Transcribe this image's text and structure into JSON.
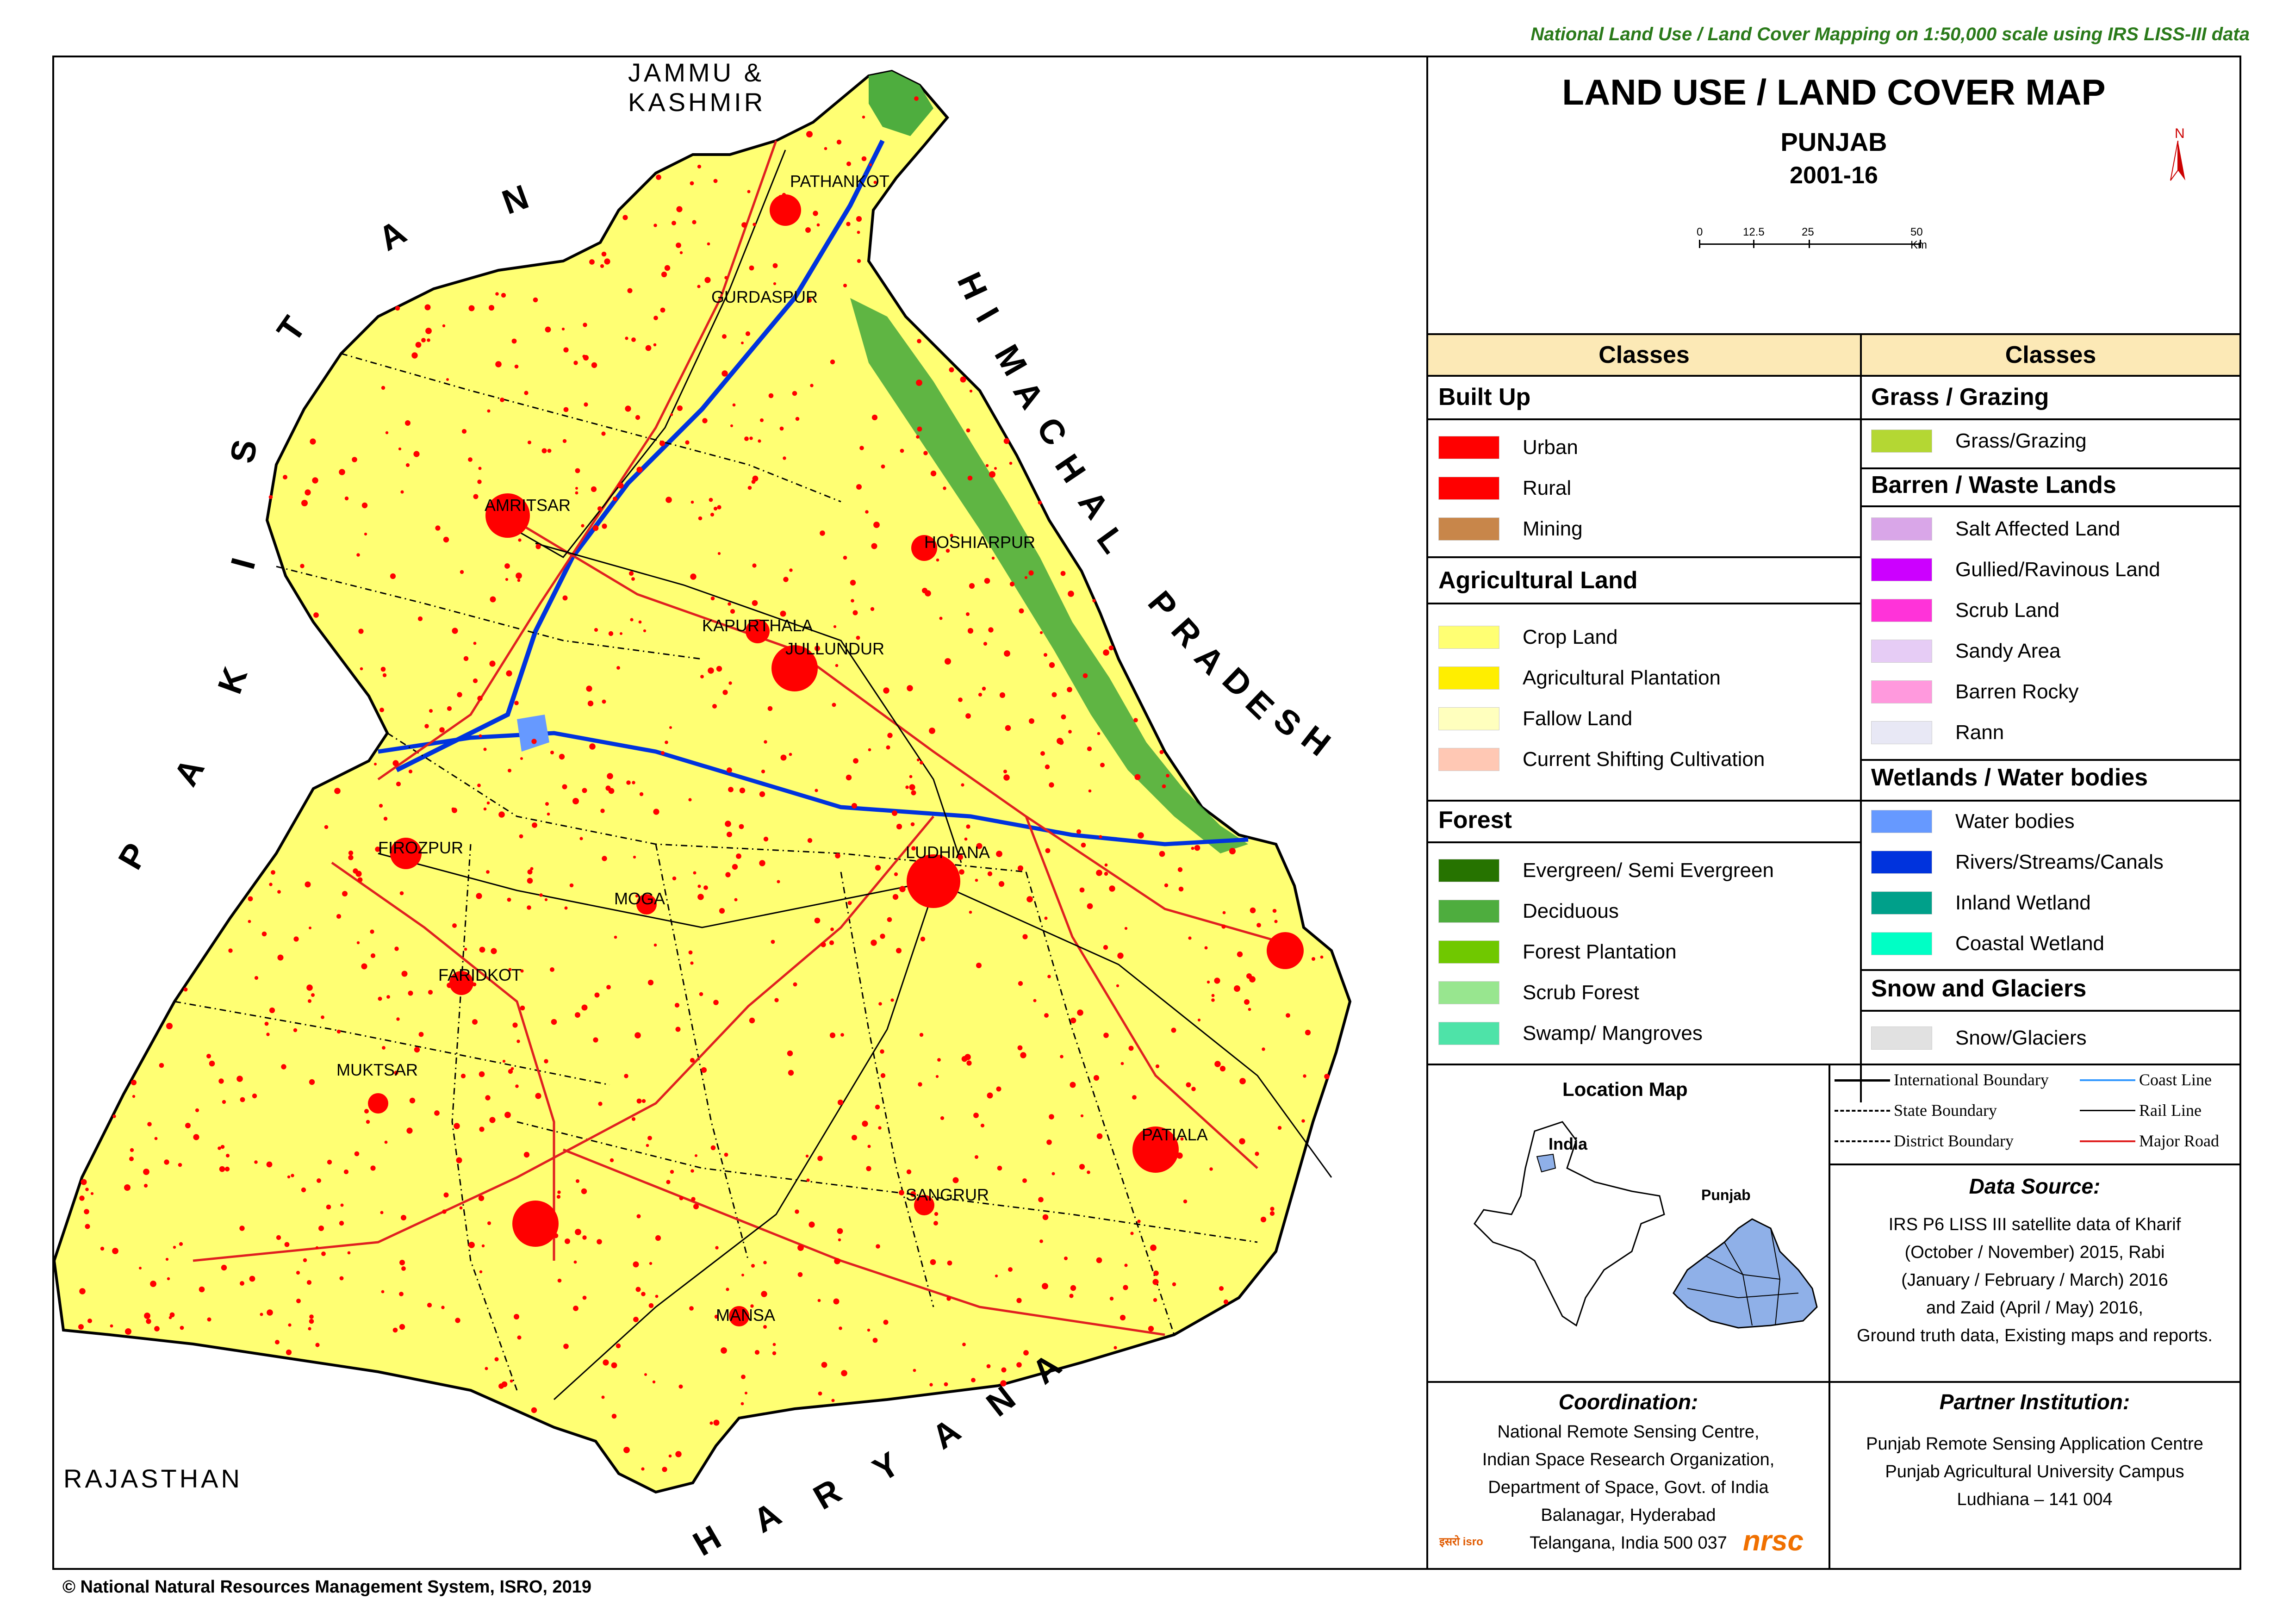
{
  "header_note": "National Land Use / Land Cover Mapping on 1:50,000 scale using IRS LISS-III data",
  "title": "LAND USE / LAND COVER MAP",
  "state": "PUNJAB",
  "period": "2001-16",
  "north_arrow": "N",
  "scale_bar": {
    "ticks": [
      "0",
      "12.5",
      "25",
      "50 Km"
    ]
  },
  "neighbours": {
    "north": [
      "JAMMU &",
      "KASHMIR"
    ],
    "west": [
      "P",
      "A",
      "K",
      "I",
      "S",
      "T",
      "A",
      "N"
    ],
    "east": [
      "H",
      "I",
      "M",
      "A",
      "C",
      "H",
      "A",
      "L",
      " ",
      "P",
      "R",
      "A",
      "D",
      "E",
      "S",
      "H"
    ],
    "south": [
      "H",
      "A",
      "R",
      "Y",
      "A",
      "N",
      "A"
    ],
    "southwest": "RAJASTHAN"
  },
  "cities": [
    "PATHANKOT",
    "GURDASPUR",
    "AMRITSAR",
    "HOSHIARPUR",
    "KAPURTHALA",
    "JULLUNDUR",
    "FIROZPUR",
    "LUDHIANA",
    "MOGA",
    "FARIDKOT",
    "MUKTSAR",
    "PATIALA",
    "SANGRUR",
    "MANSA"
  ],
  "legend_header_left": "Classes",
  "legend_header_right": "Classes",
  "legend_left": [
    {
      "category": "Built Up",
      "items": [
        {
          "label": "Urban",
          "color": "#ff0000"
        },
        {
          "label": "Rural",
          "color": "#ff0000"
        },
        {
          "label": "Mining",
          "color": "#c8864a"
        }
      ]
    },
    {
      "category": "Agricultural Land",
      "items": [
        {
          "label": "Crop Land",
          "color": "#ffff73"
        },
        {
          "label": "Agricultural Plantation",
          "color": "#ffee00"
        },
        {
          "label": "Fallow Land",
          "color": "#ffffbe"
        },
        {
          "label": "Current Shifting Cultivation",
          "color": "#ffc8b4"
        }
      ]
    },
    {
      "category": "Forest",
      "items": [
        {
          "label": "Evergreen/ Semi Evergreen",
          "color": "#267300"
        },
        {
          "label": "Deciduous",
          "color": "#4ead3e"
        },
        {
          "label": "Forest Plantation",
          "color": "#70c800"
        },
        {
          "label": "Scrub Forest",
          "color": "#98e68f"
        },
        {
          "label": "Swamp/ Mangroves",
          "color": "#4ee3a8"
        }
      ]
    }
  ],
  "legend_right": [
    {
      "category": "Grass / Grazing",
      "items": [
        {
          "label": "Grass/Grazing",
          "color": "#b4d733"
        }
      ]
    },
    {
      "category": "Barren / Waste Lands",
      "items": [
        {
          "label": "Salt Affected Land",
          "color": "#d9a6e8"
        },
        {
          "label": "Gullied/Ravinous Land",
          "color": "#cc00ff"
        },
        {
          "label": "Scrub Land",
          "color": "#ff33d9"
        },
        {
          "label": "Sandy Area",
          "color": "#e6ccf5"
        },
        {
          "label": "Barren Rocky",
          "color": "#ff99dd"
        },
        {
          "label": "Rann",
          "color": "#e8e8f5"
        }
      ]
    },
    {
      "category": "Wetlands / Water bodies",
      "items": [
        {
          "label": "Water bodies",
          "color": "#6699ff"
        },
        {
          "label": "Rivers/Streams/Canals",
          "color": "#0033dd"
        },
        {
          "label": "Inland Wetland",
          "color": "#00a08a"
        },
        {
          "label": "Coastal Wetland",
          "color": "#00ffc5"
        }
      ]
    },
    {
      "category": "Snow and Glaciers",
      "items": [
        {
          "label": "Snow/Glaciers",
          "color": "#e1e1e1"
        }
      ]
    }
  ],
  "location_map": {
    "title": "Location Map",
    "label_country": "India",
    "label_state": "Punjab"
  },
  "boundary_legend": {
    "international": "International Boundary",
    "state": "State Boundary",
    "district": "District Boundary",
    "coast": "Coast Line",
    "rail": "Rail Line",
    "road": "Major Road"
  },
  "data_source": {
    "title": "Data Source:",
    "lines": [
      "IRS P6 LISS III satellite data of Kharif",
      "(October / November) 2015, Rabi",
      "(January / February / March) 2016",
      "and Zaid (April / May) 2016,",
      "Ground truth data, Existing maps and reports."
    ]
  },
  "coordination": {
    "title": "Coordination:",
    "lines": [
      "National Remote Sensing Centre,",
      "Indian Space Research Organization,",
      "Department of Space, Govt. of India",
      "Balanagar, Hyderabad",
      "Telangana, India 500 037"
    ],
    "logo_isro": "इसरो isro",
    "logo_nrsc": "nrsc"
  },
  "partner": {
    "title": "Partner Institution:",
    "lines": [
      "Punjab  Remote Sensing Application  Centre",
      "Punjab  Agricultural University Campus",
      "Ludhiana  – 141 004"
    ]
  },
  "copyright": "© National Natural Resources Management System, ISRO, 2019"
}
